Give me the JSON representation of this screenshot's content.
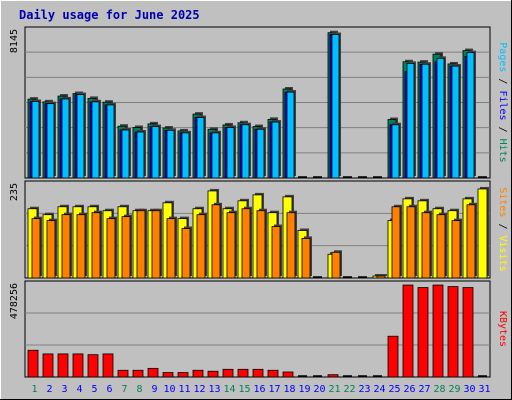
{
  "title": "Daily usage for June 2025",
  "colors": {
    "background": "#c0c0c0",
    "hits": "#00805c",
    "files": "#0000ff",
    "pages": "#00c0ff",
    "visits": "#ffff00",
    "sites": "#ff8000",
    "kbytes": "#ff0000",
    "weekend_day_label": "#00805c",
    "weekday_label": "#0000ff",
    "title": "#0000b0"
  },
  "chart_data": {
    "type": "bar",
    "title": "Daily usage for June 2025",
    "categories": [
      "1",
      "2",
      "3",
      "4",
      "5",
      "6",
      "7",
      "8",
      "9",
      "10",
      "11",
      "12",
      "13",
      "14",
      "15",
      "16",
      "17",
      "18",
      "19",
      "20",
      "21",
      "22",
      "23",
      "24",
      "25",
      "26",
      "27",
      "28",
      "29",
      "30",
      "31"
    ],
    "weekend_days": [
      "1",
      "7",
      "8",
      "14",
      "15",
      "21",
      "22",
      "28",
      "29"
    ],
    "panels": [
      {
        "id": "top",
        "ymax_label": "8145",
        "ymax": 8145,
        "right_label": [
          "Pages",
          "Files",
          "Hits"
        ],
        "series": [
          {
            "name": "Hits",
            "values": [
              4370,
              4220,
              4540,
              4680,
              4410,
              4200,
              2870,
              2800,
              3000,
              2770,
              2610,
              3540,
              2700,
              2940,
              3060,
              2850,
              3250,
              4930,
              0,
              0,
              8050,
              0,
              0,
              0,
              3240,
              6440,
              6420,
              6860,
              6320,
              7060,
              0
            ]
          },
          {
            "name": "Files",
            "values": [
              4240,
              4120,
              4380,
              4620,
              4220,
              4050,
              2660,
              2550,
              2850,
              2640,
              2500,
              3350,
              2500,
              2800,
              2950,
              2700,
              3100,
              4760,
              0,
              0,
              7950,
              0,
              0,
              0,
              2950,
              5900,
              6300,
              6440,
              6200,
              6740,
              0
            ]
          },
          {
            "name": "Pages",
            "values": [
              4240,
              4120,
              4380,
              4620,
              4220,
              4050,
              2660,
              2550,
              2850,
              2640,
              2500,
              3350,
              2500,
              2800,
              2950,
              2700,
              3100,
              4760,
              0,
              0,
              7950,
              0,
              0,
              0,
              2950,
              6350,
              6300,
              6630,
              6200,
              6950,
              0
            ]
          }
        ]
      },
      {
        "id": "middle",
        "ymax_label": "235",
        "ymax": 235,
        "right_label": [
          "Sites",
          "Visits"
        ],
        "series": [
          {
            "name": "Visits",
            "values": [
              175,
              160,
              180,
              180,
              180,
              170,
              180,
              170,
              170,
              190,
              150,
              175,
              220,
              175,
              195,
              210,
              165,
              205,
              120,
              0,
              60,
              0,
              0,
              5,
              145,
              200,
              195,
              175,
              170,
              200,
              225
            ]
          },
          {
            "name": "Sites",
            "values": [
              150,
              145,
              160,
              160,
              165,
              150,
              155,
              170,
              170,
              150,
              125,
              160,
              185,
              165,
              175,
              170,
              130,
              165,
              100,
              0,
              65,
              0,
              0,
              5,
              180,
              180,
              165,
              160,
              145,
              185,
              0
            ]
          }
        ]
      },
      {
        "id": "bottom",
        "ymax_label": "478256",
        "ymax": 478256,
        "right_label": [
          "KBytes"
        ],
        "series": [
          {
            "name": "KBytes",
            "values": [
              139000,
              120000,
              120000,
              120000,
              116000,
              120000,
              35000,
              35000,
              45000,
              23000,
              23000,
              35000,
              30000,
              40000,
              40000,
              40000,
              35000,
              26000,
              0,
              0,
              12000,
              0,
              0,
              0,
              212000,
              478000,
              465000,
              478000,
              470000,
              465000,
              0
            ]
          }
        ]
      }
    ]
  }
}
